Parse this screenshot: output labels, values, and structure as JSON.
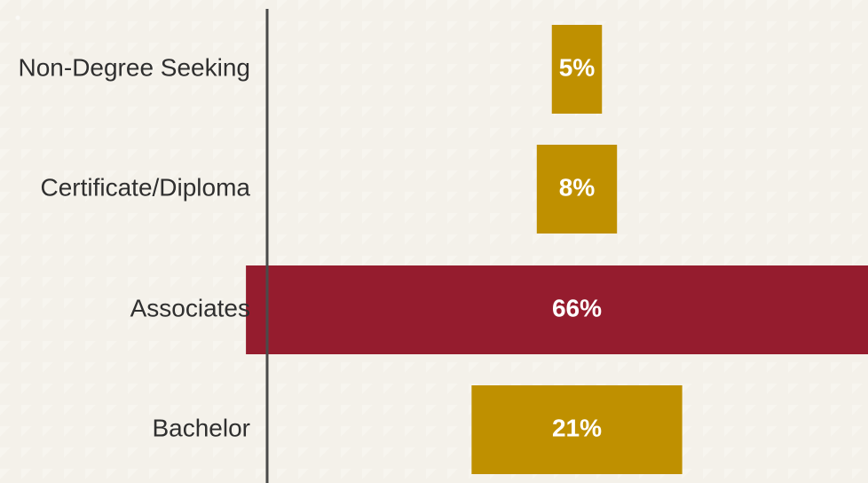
{
  "chart_data": {
    "type": "bar",
    "orientation": "horizontal",
    "categories": [
      "Non-Degree Seeking",
      "Certificate/Diploma",
      "Associates",
      "Bachelor"
    ],
    "values": [
      5,
      8,
      66,
      21
    ],
    "value_labels": [
      "5%",
      "8%",
      "66%",
      "21%"
    ],
    "colors": [
      "#bf9000",
      "#bf9000",
      "#951c2e",
      "#bf9000"
    ],
    "grid": false,
    "legend": "none",
    "title": "",
    "xlabel": "",
    "ylabel": "",
    "xlim": [
      0,
      100
    ]
  },
  "theme": {
    "axis_color": "#4a4a4a",
    "label_color": "#2f2f2f",
    "data_label_color": "#ffffff",
    "background_color": "#f4f1ea"
  }
}
